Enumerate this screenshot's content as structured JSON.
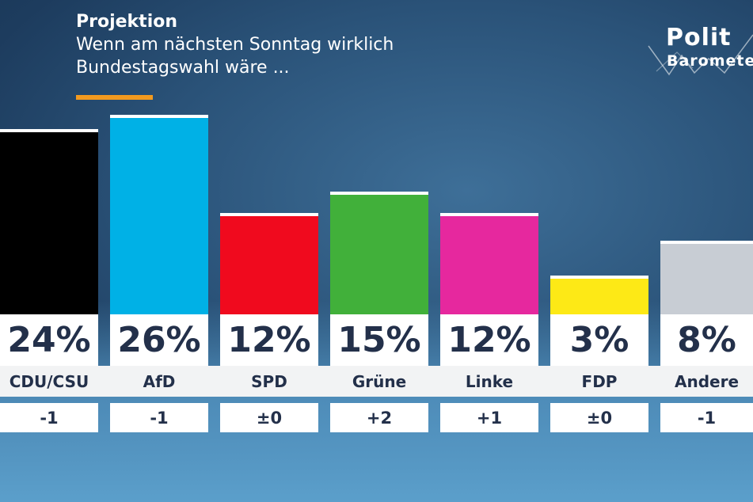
{
  "header": {
    "title": "Projektion",
    "subtitle": "Wenn am nächsten Sonntag wirklich Bundestagswahl wäre ..."
  },
  "logo": {
    "line1": "Polit",
    "line2": "Barometer"
  },
  "colors": {
    "accent": "#f29a1f",
    "text": "#23304a"
  },
  "chart_data": {
    "type": "bar",
    "unit": "%",
    "categories": [
      "CDU/CSU",
      "AfD",
      "SPD",
      "Grüne",
      "Linke",
      "FDP",
      "Andere"
    ],
    "values": [
      24,
      26,
      12,
      15,
      12,
      3,
      8
    ],
    "value_labels": [
      "24%",
      "26%",
      "12%",
      "15%",
      "12%",
      "3%",
      "8%"
    ],
    "changes": [
      "-1",
      "-1",
      "±0",
      "+2",
      "+1",
      "±0",
      "-1"
    ],
    "colors": [
      "#000000",
      "#00b1e6",
      "#f00a1e",
      "#41b03a",
      "#e6289e",
      "#fde916",
      "#c8cdd4"
    ],
    "ylim": [
      0,
      26
    ]
  }
}
